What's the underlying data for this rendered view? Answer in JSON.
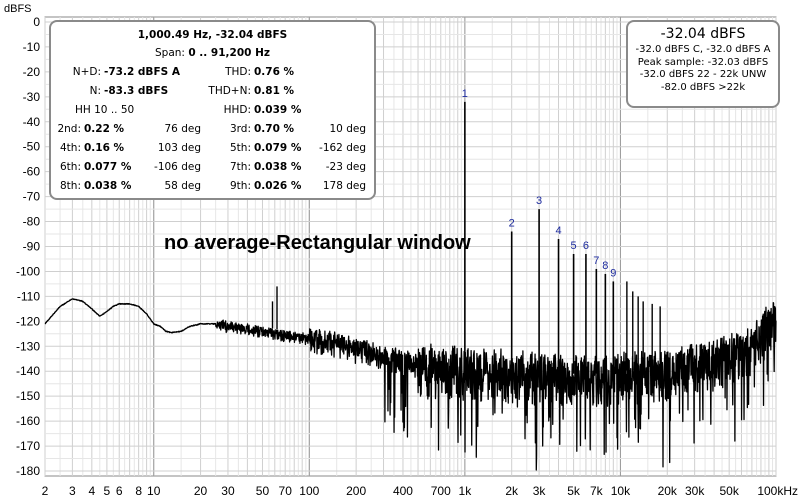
{
  "chart_data": {
    "type": "line",
    "title": "",
    "xlabel": "",
    "ylabel": "dBFS",
    "x_scale": "log",
    "xlim": [
      2,
      100000
    ],
    "ylim": [
      -182,
      2
    ],
    "grid": true,
    "y_ticks": [
      0,
      -10,
      -20,
      -30,
      -40,
      -50,
      -60,
      -70,
      -80,
      -90,
      -100,
      -110,
      -120,
      -130,
      -140,
      -150,
      -160,
      -170,
      -180
    ],
    "x_ticks": [
      {
        "v": 2,
        "label": "2"
      },
      {
        "v": 3,
        "label": "3"
      },
      {
        "v": 4,
        "label": "4"
      },
      {
        "v": 5,
        "label": "5"
      },
      {
        "v": 6,
        "label": "6"
      },
      {
        "v": 8,
        "label": "8"
      },
      {
        "v": 10,
        "label": "10"
      },
      {
        "v": 20,
        "label": "20"
      },
      {
        "v": 30,
        "label": "30"
      },
      {
        "v": 50,
        "label": "50"
      },
      {
        "v": 70,
        "label": "70"
      },
      {
        "v": 100,
        "label": "100"
      },
      {
        "v": 200,
        "label": "200"
      },
      {
        "v": 400,
        "label": "400"
      },
      {
        "v": 700,
        "label": "700"
      },
      {
        "v": 1000,
        "label": "1k"
      },
      {
        "v": 2000,
        "label": "2k"
      },
      {
        "v": 3000,
        "label": "3k"
      },
      {
        "v": 5000,
        "label": "5k"
      },
      {
        "v": 7000,
        "label": "7k"
      },
      {
        "v": 10000,
        "label": "10k"
      },
      {
        "v": 20000,
        "label": "20k"
      },
      {
        "v": 30000,
        "label": "30k"
      },
      {
        "v": 50000,
        "label": "50k"
      },
      {
        "v": 100000,
        "label": "100kHz"
      }
    ],
    "harmonics": [
      {
        "label": "1",
        "x": 1000,
        "y": -32.04
      },
      {
        "label": "2",
        "x": 2000,
        "y": -84
      },
      {
        "label": "3",
        "x": 3000,
        "y": -75
      },
      {
        "label": "4",
        "x": 4000,
        "y": -87
      },
      {
        "label": "5",
        "x": 5000,
        "y": -93
      },
      {
        "label": "6",
        "x": 6000,
        "y": -93
      },
      {
        "label": "7",
        "x": 7000,
        "y": -99
      },
      {
        "label": "8",
        "x": 8000,
        "y": -101
      },
      {
        "label": "9",
        "x": 9000,
        "y": -104
      }
    ],
    "other_peaks": [
      {
        "x": 11000,
        "y": -104
      },
      {
        "x": 12000,
        "y": -108
      },
      {
        "x": 13000,
        "y": -110
      },
      {
        "x": 14000,
        "y": -112
      },
      {
        "x": 16000,
        "y": -113
      },
      {
        "x": 18000,
        "y": -114
      },
      {
        "x": 58,
        "y": -112
      },
      {
        "x": 62,
        "y": -106
      },
      {
        "x": 45,
        "y": -125
      },
      {
        "x": 75,
        "y": -128
      },
      {
        "x": 120,
        "y": -130
      },
      {
        "x": 150,
        "y": -128
      },
      {
        "x": 250,
        "y": -135
      }
    ],
    "series": [
      {
        "values": [
          [
            2,
            -121
          ],
          [
            2.5,
            -114
          ],
          [
            3,
            -111
          ],
          [
            3.5,
            -112
          ],
          [
            4,
            -115
          ],
          [
            4.5,
            -118
          ],
          [
            5,
            -116
          ],
          [
            5.5,
            -114
          ],
          [
            6,
            -113
          ],
          [
            7,
            -113
          ],
          [
            8,
            -114
          ],
          [
            9,
            -117
          ],
          [
            10,
            -121
          ],
          [
            11,
            -122
          ],
          [
            12,
            -124
          ],
          [
            13,
            -124.5
          ],
          [
            15,
            -124
          ],
          [
            17,
            -122
          ],
          [
            20,
            -121
          ],
          [
            25,
            -121
          ],
          [
            30,
            -122
          ],
          [
            40,
            -123
          ],
          [
            50,
            -124
          ],
          [
            60,
            -125
          ],
          [
            80,
            -126
          ],
          [
            100,
            -127
          ],
          [
            150,
            -129
          ],
          [
            200,
            -131
          ],
          [
            300,
            -134
          ],
          [
            400,
            -136
          ],
          [
            500,
            -138
          ],
          [
            700,
            -139
          ],
          [
            1000,
            -140
          ],
          [
            2000,
            -141
          ],
          [
            3000,
            -142
          ],
          [
            5000,
            -143
          ],
          [
            7000,
            -143
          ],
          [
            10000,
            -142
          ],
          [
            15000,
            -141
          ],
          [
            20000,
            -140
          ],
          [
            25000,
            -139
          ],
          [
            30000,
            -138
          ],
          [
            40000,
            -137
          ],
          [
            50000,
            -135
          ],
          [
            60000,
            -133
          ],
          [
            70000,
            -130
          ],
          [
            80000,
            -126
          ],
          [
            90000,
            -122
          ],
          [
            100000,
            -117
          ]
        ]
      }
    ]
  },
  "stats_panel": {
    "header": "1,000.49 Hz, -32.04 dBFS",
    "span_label": "Span:",
    "span_value": "0 .. 91,200 Hz",
    "nd_label": "N+D:",
    "nd_value": "-73.2 dBFS A",
    "thd_label": "THD:",
    "thd_value": "0.76 %",
    "n_label": "N:",
    "n_value": "-83.3 dBFS",
    "thdn_label": "THD+N:",
    "thdn_value": "0.81 %",
    "hh_label": "HH 10 .. 50",
    "hhd_label": "HHD:",
    "hhd_value": "0.039 %",
    "harmonic_rows": [
      {
        "l1": "2nd:",
        "v1": "0.22 %",
        "d1": "76 deg",
        "l2": "3rd:",
        "v2": "0.70 %",
        "d2": "10 deg"
      },
      {
        "l1": "4th:",
        "v1": "0.16 %",
        "d1": "103 deg",
        "l2": "5th:",
        "v2": "0.079 %",
        "d2": "-162 deg"
      },
      {
        "l1": "6th:",
        "v1": "0.077 %",
        "d1": "-106 deg",
        "l2": "7th:",
        "v2": "0.038 %",
        "d2": "-23 deg"
      },
      {
        "l1": "8th:",
        "v1": "0.038 %",
        "d1": "58 deg",
        "l2": "9th:",
        "v2": "0.026 %",
        "d2": "178 deg"
      }
    ]
  },
  "level_panel": {
    "main": "-32.04 dBFS",
    "lines": [
      "-32.0 dBFS C, -32.0 dBFS A",
      "Peak sample: -32.03 dBFS",
      "-32.0 dBFS 22 - 22k UNW",
      "-82.0 dBFS >22k"
    ]
  },
  "annotation": "no average-Rectangular window",
  "colors": {
    "trace": "#000000",
    "grid": "#cfcfcf",
    "frame": "#8a8a8a",
    "harmonic_label": "#1c2a9e",
    "background": "#ffffff"
  }
}
